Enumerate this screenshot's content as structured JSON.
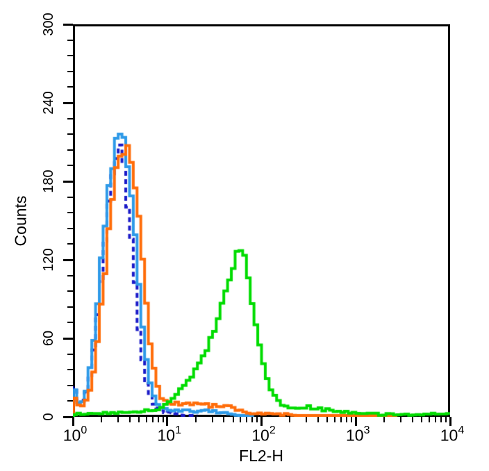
{
  "figure": {
    "background": "#FFFFFF",
    "axis_color": "#000000"
  },
  "chart_data": {
    "type": "line",
    "subtype": "flow-cytometry-step-histogram-overlay",
    "title": "",
    "xlabel": "FL2-H",
    "ylabel": "Counts",
    "x_scale": "log10",
    "xlim_log10": [
      0,
      4
    ],
    "x_tick_base": "10",
    "x_major_tick_exponents": [
      0,
      1,
      2,
      3,
      4
    ],
    "ylim": [
      0,
      300
    ],
    "y_major_ticks": [
      0,
      60,
      120,
      180,
      240,
      300
    ],
    "y_minor_tick_step": 12,
    "grid": false,
    "legend": "none",
    "series": [
      {
        "name": "navy-dashed-trace",
        "color": "#1A1AC8",
        "line_style": "dashed",
        "peak_x_fl2h": 3.1,
        "peak_counts": 204,
        "points": [
          [
            0,
            28
          ],
          [
            0.04,
            16
          ],
          [
            0.08,
            10
          ],
          [
            0.12,
            14
          ],
          [
            0.16,
            24
          ],
          [
            0.2,
            42
          ],
          [
            0.24,
            64
          ],
          [
            0.28,
            90
          ],
          [
            0.32,
            120
          ],
          [
            0.36,
            150
          ],
          [
            0.4,
            177
          ],
          [
            0.44,
            195
          ],
          [
            0.48,
            204
          ],
          [
            0.52,
            198
          ],
          [
            0.56,
            180
          ],
          [
            0.6,
            152
          ],
          [
            0.64,
            118
          ],
          [
            0.68,
            84
          ],
          [
            0.72,
            54
          ],
          [
            0.76,
            32
          ],
          [
            0.8,
            18
          ],
          [
            0.85,
            10
          ],
          [
            0.9,
            6
          ],
          [
            0.95,
            4
          ],
          [
            1.0,
            3
          ],
          [
            1.1,
            2
          ],
          [
            1.2,
            1
          ],
          [
            1.3,
            0
          ],
          [
            4.0,
            0
          ]
        ]
      },
      {
        "name": "light-blue-trace",
        "color": "#2E9AE8",
        "line_style": "solid",
        "peak_x_fl2h": 3.3,
        "peak_counts": 215,
        "points": [
          [
            0,
            25
          ],
          [
            0.04,
            14
          ],
          [
            0.08,
            9
          ],
          [
            0.12,
            13
          ],
          [
            0.16,
            26
          ],
          [
            0.2,
            46
          ],
          [
            0.24,
            72
          ],
          [
            0.28,
            102
          ],
          [
            0.32,
            134
          ],
          [
            0.36,
            164
          ],
          [
            0.4,
            188
          ],
          [
            0.44,
            203
          ],
          [
            0.48,
            212
          ],
          [
            0.52,
            215
          ],
          [
            0.56,
            206
          ],
          [
            0.6,
            185
          ],
          [
            0.64,
            154
          ],
          [
            0.68,
            118
          ],
          [
            0.72,
            83
          ],
          [
            0.76,
            53
          ],
          [
            0.8,
            31
          ],
          [
            0.85,
            16
          ],
          [
            0.9,
            10
          ],
          [
            0.95,
            7
          ],
          [
            1.0,
            6
          ],
          [
            1.1,
            5
          ],
          [
            1.2,
            5
          ],
          [
            1.3,
            4
          ],
          [
            1.4,
            5
          ],
          [
            1.5,
            4
          ],
          [
            1.6,
            3
          ],
          [
            1.7,
            2
          ],
          [
            1.8,
            1
          ],
          [
            1.9,
            0
          ],
          [
            4.0,
            0
          ]
        ]
      },
      {
        "name": "orange-trace",
        "color": "#FF6D0A",
        "line_style": "solid",
        "peak_x_fl2h": 3.8,
        "peak_counts": 205,
        "points": [
          [
            0,
            18
          ],
          [
            0.04,
            10
          ],
          [
            0.08,
            7
          ],
          [
            0.12,
            9
          ],
          [
            0.16,
            15
          ],
          [
            0.2,
            27
          ],
          [
            0.24,
            45
          ],
          [
            0.28,
            70
          ],
          [
            0.32,
            98
          ],
          [
            0.36,
            128
          ],
          [
            0.4,
            156
          ],
          [
            0.44,
            180
          ],
          [
            0.48,
            195
          ],
          [
            0.52,
            202
          ],
          [
            0.56,
            205
          ],
          [
            0.6,
            201
          ],
          [
            0.64,
            188
          ],
          [
            0.68,
            164
          ],
          [
            0.72,
            133
          ],
          [
            0.76,
            100
          ],
          [
            0.8,
            69
          ],
          [
            0.84,
            44
          ],
          [
            0.88,
            27
          ],
          [
            0.92,
            17
          ],
          [
            0.96,
            13
          ],
          [
            1.0,
            11
          ],
          [
            1.05,
            10
          ],
          [
            1.1,
            12
          ],
          [
            1.15,
            9
          ],
          [
            1.2,
            11
          ],
          [
            1.25,
            8
          ],
          [
            1.3,
            10
          ],
          [
            1.35,
            9
          ],
          [
            1.4,
            10
          ],
          [
            1.45,
            8
          ],
          [
            1.5,
            9
          ],
          [
            1.55,
            8
          ],
          [
            1.6,
            9
          ],
          [
            1.65,
            8
          ],
          [
            1.7,
            7
          ],
          [
            1.75,
            5
          ],
          [
            1.8,
            4
          ],
          [
            1.9,
            3
          ],
          [
            2.0,
            2
          ],
          [
            2.2,
            2
          ],
          [
            2.5,
            1
          ],
          [
            2.8,
            1
          ],
          [
            3.1,
            1
          ],
          [
            3.3,
            1
          ],
          [
            3.4,
            0
          ],
          [
            4.0,
            0
          ]
        ]
      },
      {
        "name": "green-trace",
        "color": "#00DC00",
        "line_style": "solid",
        "peak_x_fl2h": 60,
        "peak_counts": 128,
        "points": [
          [
            0,
            2
          ],
          [
            0.2,
            2
          ],
          [
            0.4,
            3
          ],
          [
            0.6,
            3
          ],
          [
            0.7,
            4
          ],
          [
            0.8,
            5
          ],
          [
            0.9,
            6
          ],
          [
            0.95,
            8
          ],
          [
            1.0,
            10
          ],
          [
            1.05,
            13
          ],
          [
            1.1,
            17
          ],
          [
            1.15,
            21
          ],
          [
            1.2,
            25
          ],
          [
            1.25,
            30
          ],
          [
            1.3,
            36
          ],
          [
            1.35,
            42
          ],
          [
            1.4,
            49
          ],
          [
            1.45,
            57
          ],
          [
            1.5,
            66
          ],
          [
            1.55,
            77
          ],
          [
            1.6,
            90
          ],
          [
            1.65,
            103
          ],
          [
            1.7,
            115
          ],
          [
            1.74,
            124
          ],
          [
            1.78,
            128
          ],
          [
            1.82,
            121
          ],
          [
            1.86,
            107
          ],
          [
            1.9,
            89
          ],
          [
            1.94,
            71
          ],
          [
            1.98,
            55
          ],
          [
            2.02,
            41
          ],
          [
            2.06,
            30
          ],
          [
            2.1,
            21
          ],
          [
            2.15,
            14
          ],
          [
            2.2,
            10
          ],
          [
            2.25,
            8
          ],
          [
            2.3,
            7
          ],
          [
            2.35,
            6
          ],
          [
            2.4,
            7
          ],
          [
            2.45,
            6
          ],
          [
            2.5,
            8
          ],
          [
            2.55,
            6
          ],
          [
            2.6,
            7
          ],
          [
            2.65,
            5
          ],
          [
            2.7,
            6
          ],
          [
            2.75,
            5
          ],
          [
            2.8,
            4
          ],
          [
            2.9,
            4
          ],
          [
            3.0,
            3
          ],
          [
            3.1,
            3
          ],
          [
            3.2,
            2
          ],
          [
            3.3,
            2
          ],
          [
            3.6,
            2
          ],
          [
            4.0,
            2
          ]
        ]
      }
    ]
  }
}
